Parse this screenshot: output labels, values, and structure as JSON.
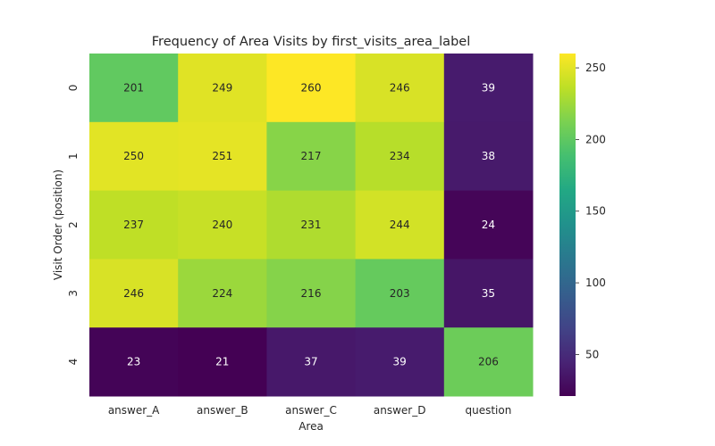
{
  "chart_data": {
    "type": "heatmap",
    "title": "Frequency of Area Visits by first_visits_area_label",
    "xlabel": "Area",
    "ylabel": "Visit Order (position)",
    "x_categories": [
      "answer_A",
      "answer_B",
      "answer_C",
      "answer_D",
      "question"
    ],
    "y_categories": [
      "0",
      "1",
      "2",
      "3",
      "4"
    ],
    "values": [
      [
        201,
        249,
        260,
        246,
        39
      ],
      [
        250,
        251,
        217,
        234,
        38
      ],
      [
        237,
        240,
        231,
        244,
        24
      ],
      [
        246,
        224,
        216,
        203,
        35
      ],
      [
        23,
        21,
        37,
        39,
        206
      ]
    ],
    "annotated": true,
    "colormap": "viridis",
    "colorbar": {
      "vmin": 21,
      "vmax": 260,
      "ticks": [
        50,
        100,
        150,
        200,
        250
      ]
    }
  }
}
